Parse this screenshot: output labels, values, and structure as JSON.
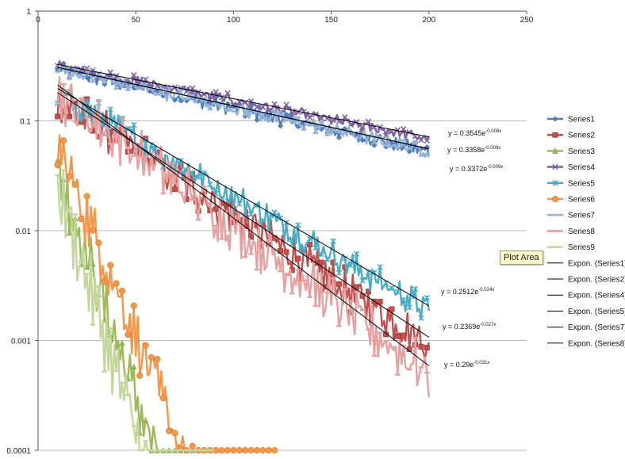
{
  "chart_data": {
    "type": "scatter",
    "x_range": [
      0,
      250
    ],
    "y_range": [
      0.0001,
      1
    ],
    "y_scale": "log",
    "x_ticks": [
      0,
      50,
      100,
      150,
      200,
      250
    ],
    "x_tick_labels": [
      "0",
      "50",
      "100",
      "150",
      "200",
      "250"
    ],
    "y_ticks": [
      0.0001,
      0.001,
      0.01,
      0.1,
      1
    ],
    "y_tick_labels": [
      "0.0001",
      "0.001",
      "0.01",
      "0.1",
      "1"
    ],
    "grid": "horizontal",
    "legend_position": "right",
    "series": [
      {
        "name": "Series1",
        "color": "#4f81bd",
        "marker": "diamond",
        "a": 0.3358,
        "k": 0.009,
        "x_start": 10,
        "x_end": 200,
        "noise": 0.12
      },
      {
        "name": "Series2",
        "color": "#c0504d",
        "marker": "square",
        "a": 0.2369,
        "k": 0.027,
        "x_start": 10,
        "x_end": 200,
        "noise": 0.35
      },
      {
        "name": "Series3",
        "color": "#9bbb59",
        "marker": "triangle",
        "a": 0.15,
        "k": 0.12,
        "x_start": 10,
        "x_end": 95,
        "noise": 0.5
      },
      {
        "name": "Series4",
        "color": "#8064a2",
        "marker": "x",
        "a": 0.3545,
        "k": 0.008,
        "x_start": 10,
        "x_end": 200,
        "noise": 0.1
      },
      {
        "name": "Series5",
        "color": "#4bacc6",
        "marker": "star",
        "a": 0.2512,
        "k": 0.024,
        "x_start": 10,
        "x_end": 200,
        "noise": 0.25
      },
      {
        "name": "Series6",
        "color": "#f79646",
        "marker": "circle",
        "a": 0.2,
        "k": 0.1,
        "x_start": 10,
        "x_end": 122,
        "noise": 0.5
      },
      {
        "name": "Series7",
        "color": "#95b3d7",
        "marker": "dash",
        "a": 0.3372,
        "k": 0.009,
        "x_start": 10,
        "x_end": 200,
        "noise": 0.12
      },
      {
        "name": "Series8",
        "color": "#e6a0a0",
        "marker": "dash",
        "a": 0.29,
        "k": 0.031,
        "x_start": 10,
        "x_end": 200,
        "noise": 0.45
      },
      {
        "name": "Series9",
        "color": "#c3d69b",
        "marker": "dash",
        "a": 0.12,
        "k": 0.13,
        "x_start": 10,
        "x_end": 90,
        "noise": 0.6
      }
    ],
    "trendlines": [
      {
        "name": "Expon. (Series1)",
        "a": 0.3358,
        "k": 0.009,
        "x_start": 10,
        "x_end": 200
      },
      {
        "name": "Expon. (Series2)",
        "a": 0.2369,
        "k": 0.027,
        "x_start": 10,
        "x_end": 200
      },
      {
        "name": "Expon. (Series4)",
        "a": 0.3545,
        "k": 0.008,
        "x_start": 10,
        "x_end": 200
      },
      {
        "name": "Expon. (Series5)",
        "a": 0.2512,
        "k": 0.024,
        "x_start": 10,
        "x_end": 200
      },
      {
        "name": "Expon. (Series7)",
        "a": 0.3372,
        "k": 0.009,
        "x_start": 10,
        "x_end": 200
      },
      {
        "name": "Expon. (Series8)",
        "a": 0.29,
        "k": 0.031,
        "x_start": 10,
        "x_end": 200
      }
    ],
    "equations": [
      {
        "base": "y = 0.3545e",
        "exp": "-0.008x"
      },
      {
        "base": "y = 0.3358e",
        "exp": "-0.009x"
      },
      {
        "base": "y = 0.3372e",
        "exp": "-0.009x"
      },
      {
        "base": "y = 0.2512e",
        "exp": "-0.024x"
      },
      {
        "base": "y = 0.2369e",
        "exp": "-0.027x"
      },
      {
        "base": "y = 0.29e",
        "exp": "-0.031x"
      }
    ],
    "trendline_color": "#000000"
  },
  "tooltip": {
    "text": "Plot Area"
  }
}
